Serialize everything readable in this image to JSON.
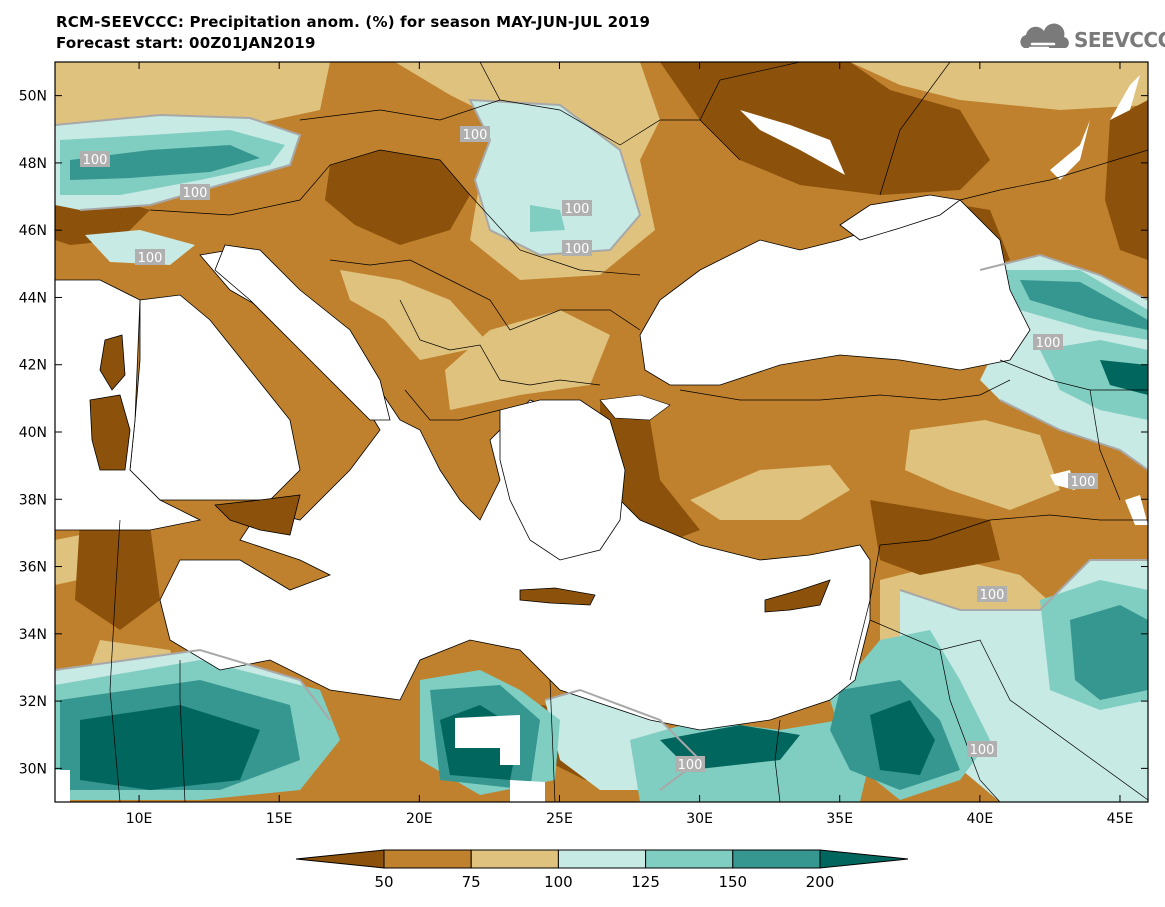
{
  "title_line1": "RCM-SEEVCCC: Precipitation anom. (%) for season MAY-JUN-JUL 2019",
  "title_line2": "Forecast start: 00Z01JAN2019",
  "logo_text": "SEEVCCC",
  "logo_icon": "cloud-icon",
  "map": {
    "lon_range": [
      7,
      46
    ],
    "lat_range": [
      29,
      51
    ],
    "lon_ticks": [
      "10E",
      "15E",
      "20E",
      "25E",
      "30E",
      "35E",
      "40E",
      "45E"
    ],
    "lat_ticks": [
      "50N",
      "48N",
      "46N",
      "44N",
      "42N",
      "40N",
      "38N",
      "36N",
      "34N",
      "32N",
      "30N"
    ],
    "contour_labels": [
      "100",
      "100",
      "100",
      "100",
      "100",
      "100",
      "100",
      "100",
      "100",
      "100"
    ]
  },
  "colorbar": {
    "labels": [
      "50",
      "75",
      "100",
      "125",
      "150",
      "200"
    ],
    "colors": [
      "#8c510a",
      "#bf812d",
      "#dfc27d",
      "#c7eae5",
      "#80cdc1",
      "#35978f",
      "#01665e"
    ]
  }
}
